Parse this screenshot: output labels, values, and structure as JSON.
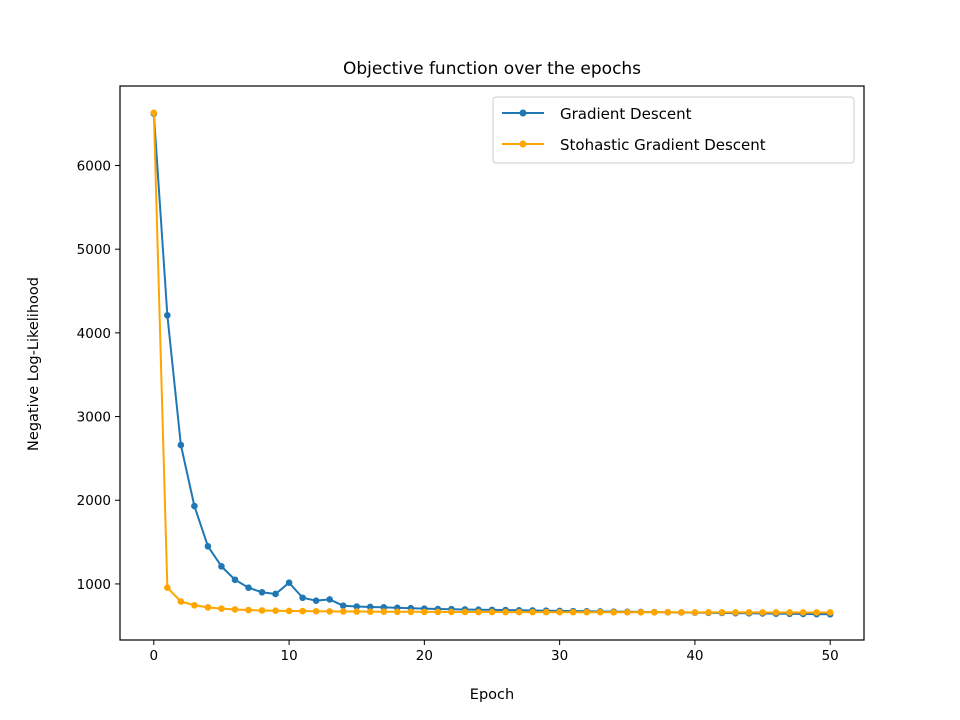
{
  "chart_data": {
    "type": "line",
    "title": "Objective function over the epochs",
    "xlabel": "Epoch",
    "ylabel": "Negative Log-Likelihood",
    "xlim": [
      -2.5,
      52.5
    ],
    "ylim": [
      330,
      6950
    ],
    "xticks": [
      0,
      10,
      20,
      30,
      40,
      50
    ],
    "yticks": [
      1000,
      2000,
      3000,
      4000,
      5000,
      6000
    ],
    "grid": false,
    "legend_position": "top-right",
    "x": [
      0,
      1,
      2,
      3,
      4,
      5,
      6,
      7,
      8,
      9,
      10,
      11,
      12,
      13,
      14,
      15,
      16,
      17,
      18,
      19,
      20,
      21,
      22,
      23,
      24,
      25,
      26,
      27,
      28,
      29,
      30,
      31,
      32,
      33,
      34,
      35,
      36,
      37,
      38,
      39,
      40,
      41,
      42,
      43,
      44,
      45,
      46,
      47,
      48,
      49,
      50
    ],
    "series": [
      {
        "name": "Gradient Descent",
        "color": "#1f77b4",
        "values": [
          6620,
          4210,
          2660,
          1930,
          1450,
          1210,
          1050,
          955,
          900,
          880,
          1015,
          835,
          800,
          815,
          740,
          730,
          725,
          720,
          715,
          710,
          705,
          700,
          698,
          695,
          692,
          690,
          688,
          685,
          683,
          680,
          678,
          675,
          673,
          671,
          669,
          667,
          665,
          663,
          661,
          659,
          657,
          655,
          653,
          651,
          649,
          647,
          645,
          643,
          641,
          639,
          637
        ]
      },
      {
        "name": "Stohastic Gradient Descent",
        "color": "#ffa500",
        "values": [
          6630,
          955,
          790,
          745,
          720,
          705,
          695,
          688,
          683,
          680,
          677,
          675,
          673,
          672,
          671,
          670,
          669,
          668,
          667,
          667,
          666,
          666,
          665,
          665,
          664,
          664,
          664,
          663,
          663,
          663,
          662,
          662,
          662,
          662,
          661,
          661,
          661,
          661,
          661,
          660,
          660,
          660,
          660,
          660,
          660,
          659,
          659,
          659,
          659,
          659,
          659
        ]
      }
    ]
  }
}
